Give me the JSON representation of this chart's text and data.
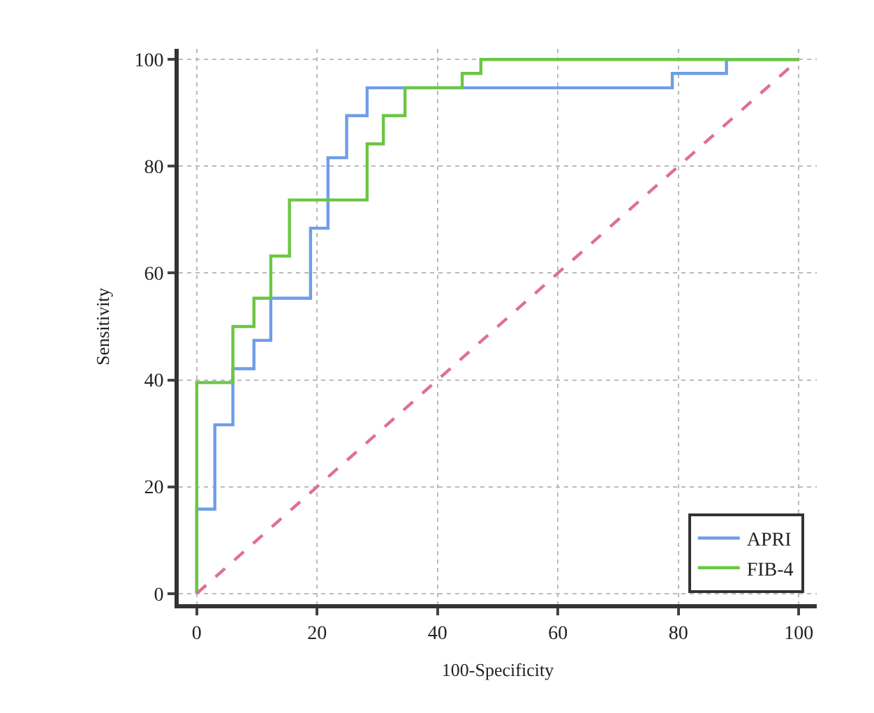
{
  "chart_data": {
    "type": "step",
    "xlabel": "100-Specificity",
    "ylabel": "Sensitivity",
    "xlim": [
      -3,
      103
    ],
    "ylim": [
      -2,
      102
    ],
    "xticks": [
      0,
      20,
      40,
      60,
      80,
      100
    ],
    "yticks": [
      0,
      20,
      40,
      60,
      80,
      100
    ],
    "grid": true,
    "legend": "bottom right",
    "marker": "none",
    "series": [
      {
        "name": "APRI",
        "color": "#6f9de8",
        "x": [
          0,
          0,
          3,
          6,
          9.5,
          12.3,
          18.9,
          21.8,
          24.9,
          28.3,
          79,
          88,
          100
        ],
        "values": [
          0,
          15.8,
          31.6,
          42.1,
          47.4,
          55.3,
          68.4,
          81.6,
          89.5,
          94.7,
          97.4,
          100,
          100
        ]
      },
      {
        "name": "FIB-4",
        "color": "#6cc644",
        "x": [
          0,
          0,
          6,
          9.5,
          12.3,
          15.4,
          28.3,
          31,
          34.6,
          44.1,
          47.2,
          100
        ],
        "values": [
          0,
          39.5,
          50,
          55.3,
          63.2,
          73.7,
          84.2,
          89.5,
          94.7,
          97.4,
          100,
          100
        ]
      },
      {
        "type": "line",
        "line_style": "dashed",
        "color": "#e07090",
        "x": [
          0,
          100
        ],
        "values": [
          0,
          100
        ]
      }
    ]
  }
}
